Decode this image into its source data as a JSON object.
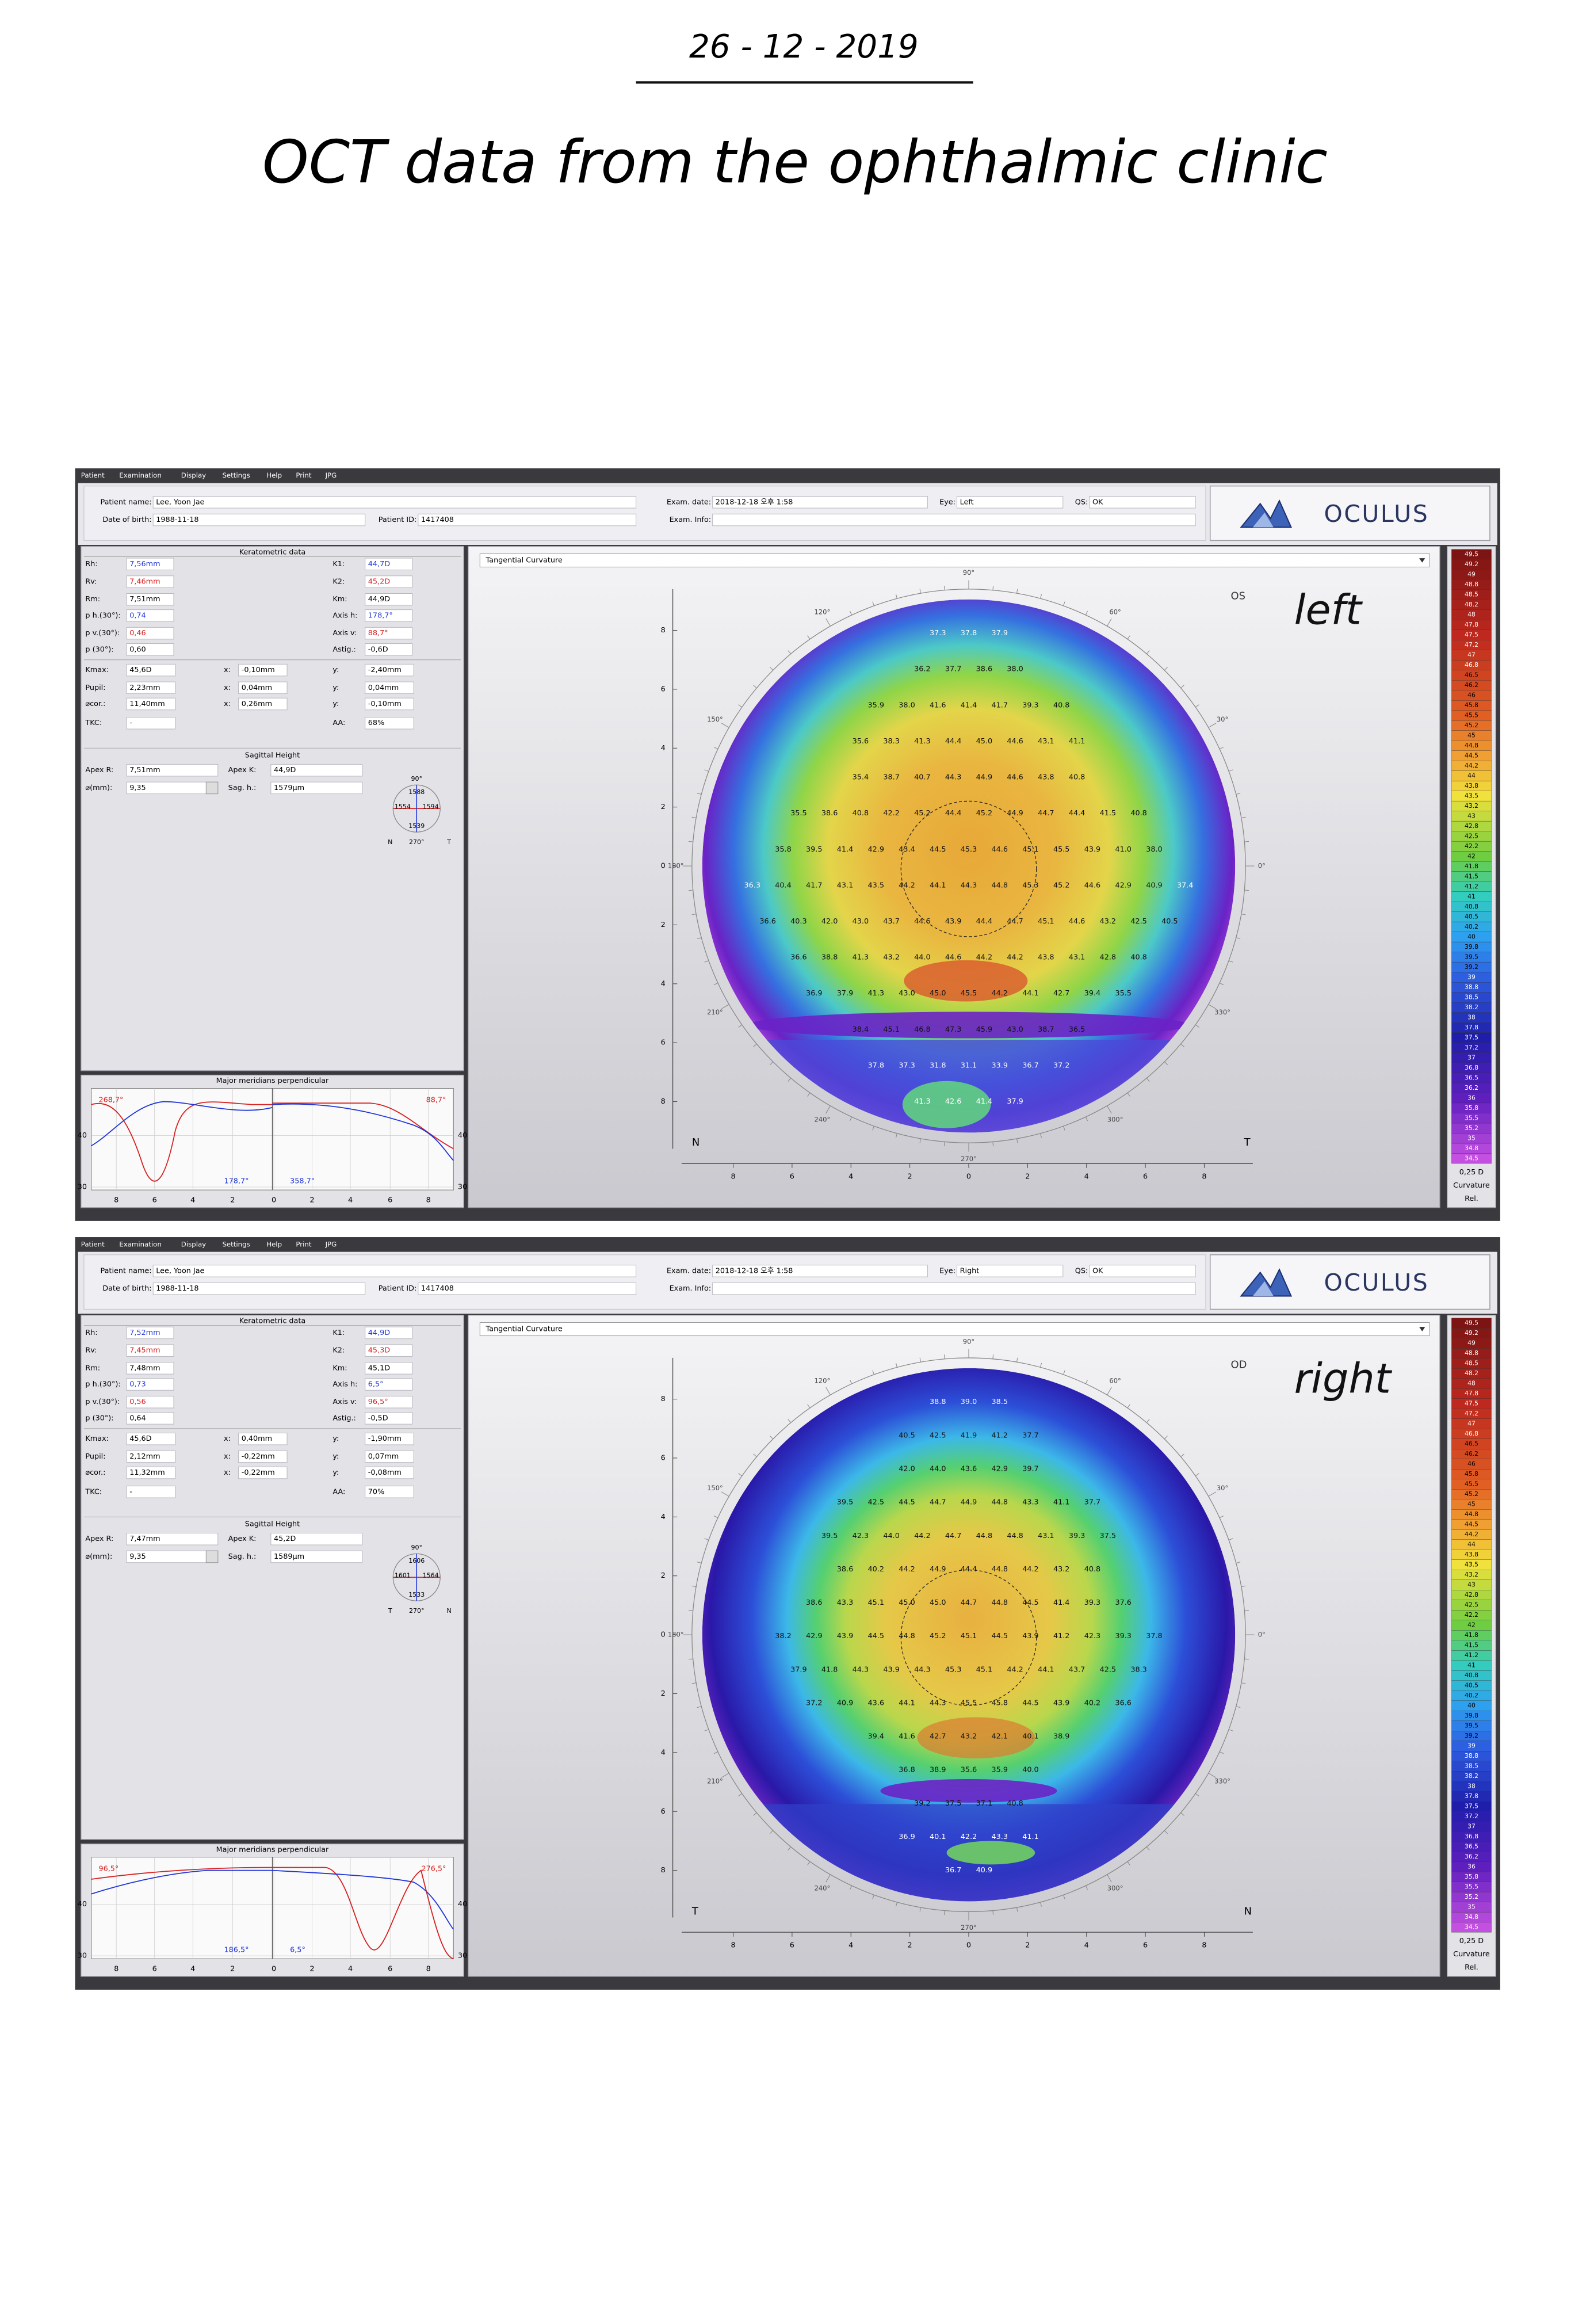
{
  "note": {
    "date": "26 - 12 - 2019",
    "title": "OCT data from the ophthalmic clinic"
  },
  "menu": [
    "Patient",
    "Examination",
    "Display",
    "Settings",
    "Help",
    "Print",
    "JPG"
  ],
  "color_scale": {
    "labels": [
      "49.5",
      "49.2",
      "49",
      "48.8",
      "48.5",
      "48.2",
      "48",
      "47.8",
      "47.5",
      "47.2",
      "47",
      "46.8",
      "46.5",
      "46.2",
      "46",
      "45.8",
      "45.5",
      "45.2",
      "45",
      "44.8",
      "44.5",
      "44.2",
      "44",
      "43.8",
      "43.5",
      "43.2",
      "43",
      "42.8",
      "42.5",
      "42.2",
      "42",
      "41.8",
      "41.5",
      "41.2",
      "41",
      "40.8",
      "40.5",
      "40.2",
      "40",
      "39.8",
      "39.5",
      "39.2",
      "39",
      "38.8",
      "38.5",
      "38.2",
      "38",
      "37.8",
      "37.5",
      "37.2",
      "37",
      "36.8",
      "36.5",
      "36.2",
      "36",
      "35.8",
      "35.5",
      "35.2",
      "35",
      "34.8",
      "34.5"
    ],
    "step": "0,25 D",
    "kind": "Curvature",
    "mode": "Rel."
  },
  "screens": [
    {
      "header": {
        "fields": [
          {
            "label": "Patient name:",
            "value": "Lee, Yoon Jae"
          },
          {
            "label": "Date of birth:",
            "value": "1988-11-18"
          },
          {
            "label": "Patient ID:",
            "value": "1417408"
          },
          {
            "label": "Exam. date:",
            "value": "2018-12-18 오후 1:58"
          },
          {
            "label": "Eye:",
            "value": "Left"
          },
          {
            "label": "QS:",
            "value": "OK"
          },
          {
            "label": "Exam. Info:"
          }
        ],
        "logo": "OCULUS"
      },
      "keratometric": {
        "title": "Keratometric data",
        "left": [
          {
            "label": "Rh:",
            "value": "7,56mm",
            "color": "blue"
          },
          {
            "label": "Rv:",
            "value": "7,46mm",
            "color": "red"
          },
          {
            "label": "Rm:",
            "value": "7,51mm"
          },
          {
            "label": "p h.(30°):",
            "value": "0,74",
            "color": "blue"
          },
          {
            "label": "p v.(30°):",
            "value": "0,46",
            "color": "red"
          },
          {
            "label": "p (30°):",
            "value": "0,60"
          }
        ],
        "right": [
          {
            "label": "K1:",
            "value": "44,7D",
            "color": "blue"
          },
          {
            "label": "K2:",
            "value": "45,2D",
            "color": "red"
          },
          {
            "label": "Km:",
            "value": "44,9D"
          },
          {
            "label": "Axis h:",
            "value": "178,7°",
            "color": "blue"
          },
          {
            "label": "Axis v:",
            "value": "88,7°",
            "color": "red"
          },
          {
            "label": "Astig.:",
            "value": "-0,6D"
          }
        ],
        "positions": [
          [
            {
              "label": "Kmax:",
              "value": "45,6D"
            },
            {
              "label": "x:",
              "value": "-0,10mm"
            },
            {
              "label": "y:",
              "value": "-2,40mm"
            }
          ],
          [
            {
              "label": "Pupil:",
              "value": "2,23mm"
            },
            {
              "label": "x:",
              "value": "0,04mm"
            },
            {
              "label": "y:",
              "value": "0,04mm"
            }
          ],
          [
            {
              "label": "⌀cor.:",
              "value": "11,40mm"
            },
            {
              "label": "x:",
              "value": "0,26mm"
            },
            {
              "label": "y:",
              "value": "-0,10mm"
            }
          ]
        ],
        "tkc": {
          "label": "TKC:",
          "value": "-"
        },
        "aa": {
          "label": "AA:",
          "value": "68%"
        }
      },
      "sagittal": {
        "title": "Sagittal Height",
        "rows": [
          [
            {
              "label": "Apex R:",
              "value": "7,51mm"
            },
            {
              "label": "Apex K:",
              "value": "44,9D"
            }
          ],
          [
            {
              "label": "⌀(mm):",
              "value": "9,35"
            },
            {
              "label": "Sag. h.:",
              "value": "1579µm"
            }
          ]
        ],
        "compass": {
          "top_label": "90°",
          "bottom_label": "270°",
          "top": "1588",
          "left": "1554",
          "right": "1594",
          "bottom": "1539",
          "left_side": "N",
          "right_side": "T"
        }
      },
      "meridians": {
        "title": "Major meridians perpendicular",
        "yticks": [
          "40",
          "30"
        ],
        "xticks": [
          "8",
          "6",
          "4",
          "2",
          "0",
          "2",
          "4",
          "6",
          "8"
        ],
        "labels": [
          {
            "text": "268,7°",
            "color": "red"
          },
          {
            "text": "88,7°",
            "color": "red"
          },
          {
            "text": "178,7°",
            "color": "blue"
          },
          {
            "text": "358,7°",
            "color": "blue"
          }
        ]
      },
      "map": {
        "dropdown": "Tangential Curvature",
        "eye": "OS",
        "handwritten": "left",
        "angles": [
          "0°",
          "30°",
          "60°",
          "90°",
          "120°",
          "150°",
          "180°",
          "210°",
          "240°",
          "270°",
          "300°",
          "330°"
        ],
        "yticks": [
          "8",
          "6",
          "4",
          "2",
          "0",
          "2",
          "4",
          "6",
          "8"
        ],
        "xticks": [
          "8",
          "6",
          "4",
          "2",
          "0",
          "2",
          "4",
          "6",
          "8"
        ],
        "side_left": "N",
        "side_right": "T",
        "values": [
          [
            "37.3",
            "37.8",
            "37.9"
          ],
          [
            "36.2",
            "37.7",
            "38.6",
            "38.0"
          ],
          [
            "35.9",
            "38.0",
            "41.6",
            "41.4",
            "41.7",
            "39.3",
            "40.8"
          ],
          [
            "35.6",
            "38.3",
            "41.3",
            "44.4",
            "45.0",
            "44.6",
            "43.1",
            "41.1"
          ],
          [
            "35.4",
            "38.7",
            "40.7",
            "44.3",
            "44.9",
            "44.6",
            "43.8",
            "40.8"
          ],
          [
            "35.5",
            "38.6",
            "40.8",
            "42.2",
            "45.2",
            "44.4",
            "45.2",
            "44.9",
            "44.7",
            "44.4",
            "41.5",
            "40.8"
          ],
          [
            "35.8",
            "39.5",
            "41.4",
            "42.9",
            "43.4",
            "44.5",
            "45.3",
            "44.6",
            "45.1",
            "45.5",
            "43.9",
            "41.0",
            "38.0"
          ],
          [
            "36.3",
            "40.4",
            "41.7",
            "43.1",
            "43.5",
            "44.2",
            "44.1",
            "44.3",
            "44.8",
            "45.3",
            "45.2",
            "44.6",
            "42.9",
            "40.9",
            "37.4"
          ],
          [
            "36.6",
            "40.3",
            "42.0",
            "43.0",
            "43.7",
            "44.6",
            "43.9",
            "44.4",
            "44.7",
            "45.1",
            "44.6",
            "43.2",
            "42.5",
            "40.5"
          ],
          [
            "36.6",
            "38.8",
            "41.3",
            "43.2",
            "44.0",
            "44.6",
            "44.2",
            "44.2",
            "43.8",
            "43.1",
            "42.8",
            "40.8"
          ],
          [
            "36.9",
            "37.9",
            "41.3",
            "43.0",
            "45.0",
            "45.5",
            "44.2",
            "44.1",
            "42.7",
            "39.4",
            "35.5"
          ],
          [
            "38.4",
            "45.1",
            "46.8",
            "47.3",
            "45.9",
            "43.0",
            "38.7",
            "36.5"
          ],
          [
            "37.8",
            "37.3",
            "31.8",
            "31.1",
            "33.9",
            "36.7",
            "37.2"
          ],
          [
            "41.3",
            "42.6",
            "41.4",
            "37.9"
          ]
        ]
      }
    },
    {
      "header": {
        "fields": [
          {
            "label": "Patient name:",
            "value": "Lee, Yoon Jae"
          },
          {
            "label": "Date of birth:",
            "value": "1988-11-18"
          },
          {
            "label": "Patient ID:",
            "value": "1417408"
          },
          {
            "label": "Exam. date:",
            "value": "2018-12-18 오후 1:58"
          },
          {
            "label": "Eye:",
            "value": "Right"
          },
          {
            "label": "QS:",
            "value": "OK"
          },
          {
            "label": "Exam. Info:"
          }
        ],
        "logo": "OCULUS"
      },
      "keratometric": {
        "title": "Keratometric data",
        "left": [
          {
            "label": "Rh:",
            "value": "7,52mm",
            "color": "blue"
          },
          {
            "label": "Rv:",
            "value": "7,45mm",
            "color": "red"
          },
          {
            "label": "Rm:",
            "value": "7,48mm"
          },
          {
            "label": "p h.(30°):",
            "value": "0,73",
            "color": "blue"
          },
          {
            "label": "p v.(30°):",
            "value": "0,56",
            "color": "red"
          },
          {
            "label": "p (30°):",
            "value": "0,64"
          }
        ],
        "right": [
          {
            "label": "K1:",
            "value": "44,9D",
            "color": "blue"
          },
          {
            "label": "K2:",
            "value": "45,3D",
            "color": "red"
          },
          {
            "label": "Km:",
            "value": "45,1D"
          },
          {
            "label": "Axis h:",
            "value": "6,5°",
            "color": "blue"
          },
          {
            "label": "Axis v:",
            "value": "96,5°",
            "color": "red"
          },
          {
            "label": "Astig.:",
            "value": "-0,5D"
          }
        ],
        "positions": [
          [
            {
              "label": "Kmax:",
              "value": "45,6D"
            },
            {
              "label": "x:",
              "value": "0,40mm"
            },
            {
              "label": "y:",
              "value": "-1,90mm"
            }
          ],
          [
            {
              "label": "Pupil:",
              "value": "2,12mm"
            },
            {
              "label": "x:",
              "value": "-0,22mm"
            },
            {
              "label": "y:",
              "value": "0,07mm"
            }
          ],
          [
            {
              "label": "⌀cor.:",
              "value": "11,32mm"
            },
            {
              "label": "x:",
              "value": "-0,22mm"
            },
            {
              "label": "y:",
              "value": "-0,08mm"
            }
          ]
        ],
        "tkc": {
          "label": "TKC:",
          "value": "-"
        },
        "aa": {
          "label": "AA:",
          "value": "70%"
        }
      },
      "sagittal": {
        "title": "Sagittal Height",
        "rows": [
          [
            {
              "label": "Apex R:",
              "value": "7,47mm"
            },
            {
              "label": "Apex K:",
              "value": "45,2D"
            }
          ],
          [
            {
              "label": "⌀(mm):",
              "value": "9,35"
            },
            {
              "label": "Sag. h.:",
              "value": "1589µm"
            }
          ]
        ],
        "compass": {
          "top_label": "90°",
          "bottom_label": "270°",
          "top": "1606",
          "left": "1601",
          "right": "1564",
          "bottom": "1533",
          "left_side": "T",
          "right_side": "N"
        }
      },
      "meridians": {
        "title": "Major meridians perpendicular",
        "yticks": [
          "40",
          "30"
        ],
        "xticks": [
          "8",
          "6",
          "4",
          "2",
          "0",
          "2",
          "4",
          "6",
          "8"
        ],
        "labels": [
          {
            "text": "96,5°",
            "color": "red"
          },
          {
            "text": "276,5°",
            "color": "red"
          },
          {
            "text": "186,5°",
            "color": "blue"
          },
          {
            "text": "6,5°",
            "color": "blue"
          }
        ]
      },
      "map": {
        "dropdown": "Tangential Curvature",
        "eye": "OD",
        "handwritten": "right",
        "angles": [
          "0°",
          "30°",
          "60°",
          "90°",
          "120°",
          "150°",
          "180°",
          "210°",
          "240°",
          "270°",
          "300°",
          "330°"
        ],
        "yticks": [
          "8",
          "6",
          "4",
          "2",
          "0",
          "2",
          "4",
          "6",
          "8"
        ],
        "xticks": [
          "8",
          "6",
          "4",
          "2",
          "0",
          "2",
          "4",
          "6",
          "8"
        ],
        "side_left": "T",
        "side_right": "N",
        "values": [
          [
            "38.8",
            "39.0",
            "38.5"
          ],
          [
            "40.5",
            "42.5",
            "41.9",
            "41.2",
            "37.7"
          ],
          [
            "42.0",
            "44.0",
            "43.6",
            "42.9",
            "39.7"
          ],
          [
            "39.5",
            "42.5",
            "44.5",
            "44.7",
            "44.9",
            "44.8",
            "43.3",
            "41.1",
            "37.7"
          ],
          [
            "39.5",
            "42.3",
            "44.0",
            "44.2",
            "44.7",
            "44.8",
            "44.8",
            "43.1",
            "39.3",
            "37.5"
          ],
          [
            "38.6",
            "40.2",
            "44.2",
            "44.9",
            "44.4",
            "44.8",
            "44.2",
            "43.2",
            "40.8"
          ],
          [
            "38.6",
            "43.3",
            "45.1",
            "45.0",
            "45.0",
            "44.7",
            "44.8",
            "44.5",
            "41.4",
            "39.3",
            "37.6"
          ],
          [
            "38.2",
            "42.9",
            "43.9",
            "44.5",
            "44.8",
            "45.2",
            "45.1",
            "44.5",
            "43.9",
            "41.2",
            "42.3",
            "39.3",
            "37.8"
          ],
          [
            "37.9",
            "41.8",
            "44.3",
            "43.9",
            "44.3",
            "45.3",
            "45.1",
            "44.2",
            "44.1",
            "43.7",
            "42.5",
            "38.3"
          ],
          [
            "37.2",
            "40.9",
            "43.6",
            "44.1",
            "44.3",
            "45.5",
            "45.8",
            "44.5",
            "43.9",
            "40.2",
            "36.6"
          ],
          [
            "39.4",
            "41.6",
            "42.7",
            "43.2",
            "42.1",
            "40.1",
            "38.9"
          ],
          [
            "36.8",
            "38.9",
            "35.6",
            "35.9",
            "40.0"
          ],
          [
            "39.2",
            "37.5",
            "37.1",
            "40.8"
          ],
          [
            "36.9",
            "40.1",
            "42.2",
            "43.3",
            "41.1"
          ],
          [
            "36.7",
            "40.9"
          ]
        ]
      }
    }
  ]
}
